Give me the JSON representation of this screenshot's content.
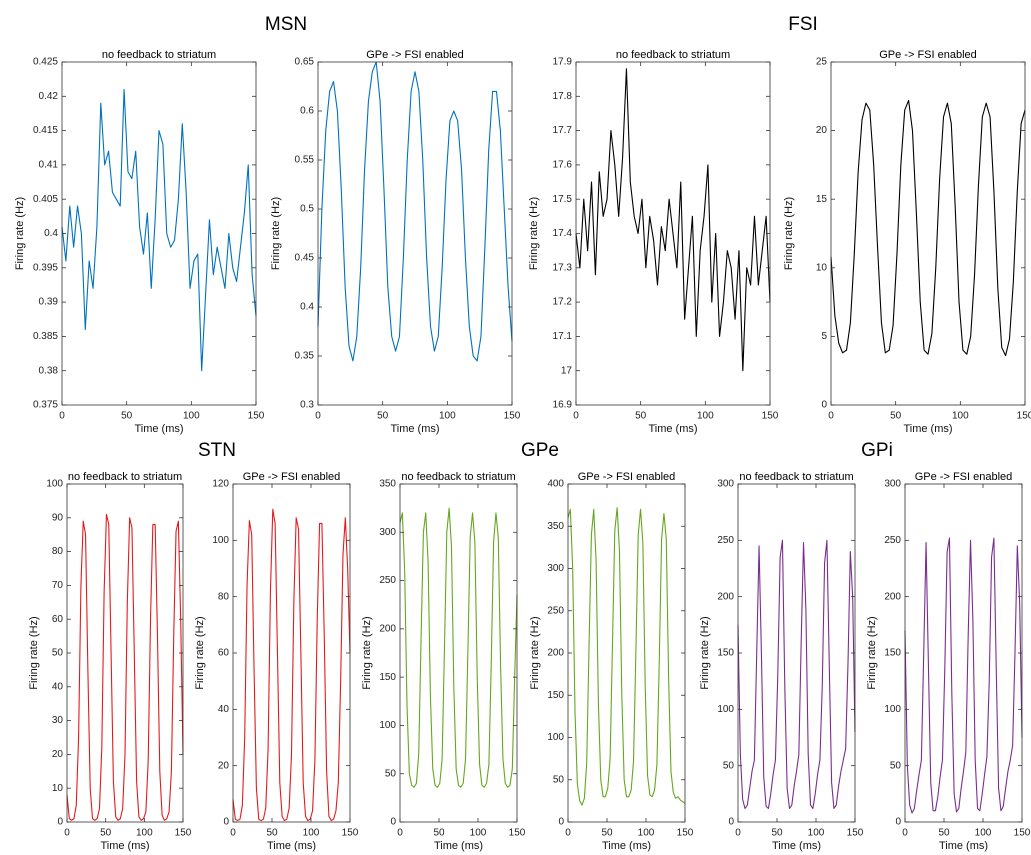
{
  "group_titles": [
    "MSN",
    "FSI",
    "STN",
    "GPe",
    "GPi"
  ],
  "chart_data": [
    {
      "type": "line",
      "title": "no feedback to striatum",
      "xlabel": "Time (ms)",
      "ylabel": "Firing rate (Hz)",
      "color": "#0072bd",
      "x": [
        0,
        3,
        6,
        9,
        12,
        15,
        18,
        21,
        24,
        27,
        30,
        33,
        36,
        39,
        42,
        45,
        48,
        51,
        54,
        57,
        60,
        63,
        66,
        69,
        72,
        75,
        78,
        81,
        84,
        87,
        90,
        93,
        96,
        99,
        102,
        105,
        108,
        111,
        114,
        117,
        120,
        123,
        126,
        129,
        132,
        135,
        138,
        141,
        144,
        147,
        150
      ],
      "values": [
        0.401,
        0.396,
        0.404,
        0.398,
        0.404,
        0.4,
        0.386,
        0.396,
        0.392,
        0.401,
        0.419,
        0.41,
        0.412,
        0.406,
        0.405,
        0.404,
        0.421,
        0.409,
        0.408,
        0.412,
        0.401,
        0.397,
        0.403,
        0.392,
        0.402,
        0.415,
        0.413,
        0.4,
        0.398,
        0.399,
        0.405,
        0.416,
        0.406,
        0.392,
        0.396,
        0.397,
        0.38,
        0.391,
        0.402,
        0.394,
        0.398,
        0.395,
        0.392,
        0.4,
        0.395,
        0.393,
        0.398,
        0.403,
        0.41,
        0.394,
        0.388
      ],
      "xlim": [
        0,
        150
      ],
      "xticks": [
        0,
        50,
        100,
        150
      ],
      "ylim": [
        0.375,
        0.425
      ],
      "yticks": [
        0.375,
        0.38,
        0.385,
        0.39,
        0.395,
        0.4,
        0.405,
        0.41,
        0.415,
        0.42,
        0.425
      ]
    },
    {
      "type": "line",
      "title": "GPe -> FSI enabled",
      "xlabel": "Time (ms)",
      "ylabel": "Firing rate (Hz)",
      "color": "#0072bd",
      "x": [
        0,
        3,
        6,
        9,
        12,
        15,
        18,
        21,
        24,
        27,
        30,
        33,
        36,
        39,
        42,
        45,
        48,
        51,
        54,
        57,
        60,
        63,
        66,
        69,
        72,
        75,
        78,
        81,
        84,
        87,
        90,
        93,
        96,
        99,
        102,
        105,
        108,
        111,
        114,
        117,
        120,
        123,
        126,
        129,
        132,
        135,
        138,
        141,
        144,
        147,
        150
      ],
      "values": [
        0.38,
        0.5,
        0.58,
        0.62,
        0.63,
        0.6,
        0.52,
        0.42,
        0.36,
        0.345,
        0.37,
        0.44,
        0.54,
        0.61,
        0.64,
        0.65,
        0.61,
        0.52,
        0.42,
        0.37,
        0.355,
        0.37,
        0.45,
        0.55,
        0.62,
        0.64,
        0.62,
        0.55,
        0.45,
        0.38,
        0.355,
        0.37,
        0.44,
        0.53,
        0.59,
        0.6,
        0.59,
        0.54,
        0.45,
        0.38,
        0.35,
        0.345,
        0.37,
        0.46,
        0.56,
        0.62,
        0.62,
        0.58,
        0.5,
        0.42,
        0.365
      ],
      "xlim": [
        0,
        150
      ],
      "xticks": [
        0,
        50,
        100,
        150
      ],
      "ylim": [
        0.3,
        0.65
      ],
      "yticks": [
        0.3,
        0.35,
        0.4,
        0.45,
        0.5,
        0.55,
        0.6,
        0.65
      ]
    },
    {
      "type": "line",
      "title": "no feedback to striatum",
      "xlabel": "Time (ms)",
      "ylabel": "Firing rate (Hz)",
      "color": "#000000",
      "x": [
        0,
        3,
        6,
        9,
        12,
        15,
        18,
        21,
        24,
        27,
        30,
        33,
        36,
        39,
        42,
        45,
        48,
        51,
        54,
        57,
        60,
        63,
        66,
        69,
        72,
        75,
        78,
        81,
        84,
        87,
        90,
        93,
        96,
        99,
        102,
        105,
        108,
        111,
        114,
        117,
        120,
        123,
        126,
        129,
        132,
        135,
        138,
        141,
        144,
        147,
        150
      ],
      "values": [
        17.4,
        17.3,
        17.5,
        17.35,
        17.55,
        17.28,
        17.58,
        17.45,
        17.5,
        17.7,
        17.6,
        17.45,
        17.62,
        17.88,
        17.55,
        17.45,
        17.4,
        17.5,
        17.3,
        17.45,
        17.38,
        17.25,
        17.42,
        17.35,
        17.5,
        17.4,
        17.3,
        17.55,
        17.15,
        17.3,
        17.45,
        17.1,
        17.35,
        17.45,
        17.6,
        17.2,
        17.4,
        17.1,
        17.2,
        17.35,
        17.3,
        17.15,
        17.35,
        17.0,
        17.3,
        17.25,
        17.45,
        17.25,
        17.35,
        17.45,
        17.2
      ],
      "xlim": [
        0,
        150
      ],
      "xticks": [
        0,
        50,
        100,
        150
      ],
      "ylim": [
        16.9,
        17.9
      ],
      "yticks": [
        16.9,
        17,
        17.1,
        17.2,
        17.3,
        17.4,
        17.5,
        17.6,
        17.7,
        17.8,
        17.9
      ]
    },
    {
      "type": "line",
      "title": "GPe -> FSI enabled",
      "xlabel": "Time (ms)",
      "ylabel": "Firing rate (Hz)",
      "color": "#000000",
      "x": [
        0,
        3,
        6,
        9,
        12,
        15,
        18,
        21,
        24,
        27,
        30,
        33,
        36,
        39,
        42,
        45,
        48,
        51,
        54,
        57,
        60,
        63,
        66,
        69,
        72,
        75,
        78,
        81,
        84,
        87,
        90,
        93,
        96,
        99,
        102,
        105,
        108,
        111,
        114,
        117,
        120,
        123,
        126,
        129,
        132,
        135,
        138,
        141,
        144,
        147,
        150
      ],
      "values": [
        10.8,
        6.5,
        4.5,
        3.8,
        4.0,
        6.0,
        11,
        17,
        20.8,
        22,
        21.5,
        17.5,
        11.5,
        6,
        3.8,
        4.0,
        5.8,
        11,
        17.5,
        21.5,
        22.2,
        20,
        14,
        7.5,
        4.0,
        3.7,
        5.2,
        10,
        16.5,
        21,
        22,
        20.5,
        14.5,
        7.5,
        4.0,
        3.7,
        5.0,
        9.5,
        16,
        21,
        22,
        21,
        15.5,
        8.5,
        4.2,
        3.6,
        4.8,
        9,
        15.5,
        20.5,
        21.5
      ],
      "xlim": [
        0,
        150
      ],
      "xticks": [
        0,
        50,
        100,
        150
      ],
      "ylim": [
        0,
        25
      ],
      "yticks": [
        0,
        5,
        10,
        15,
        20,
        25
      ]
    },
    {
      "type": "line",
      "title": "no feedback to striatum",
      "xlabel": "Time (ms)",
      "ylabel": "Firing rate (Hz)",
      "color": "#e41a1c",
      "x": [
        0,
        3,
        6,
        9,
        12,
        15,
        18,
        21,
        24,
        27,
        30,
        33,
        36,
        39,
        42,
        45,
        48,
        51,
        54,
        57,
        60,
        63,
        66,
        69,
        72,
        75,
        78,
        81,
        84,
        87,
        90,
        93,
        96,
        99,
        102,
        105,
        108,
        111,
        114,
        117,
        120,
        123,
        126,
        129,
        132,
        135,
        138,
        141,
        144,
        147,
        150
      ],
      "values": [
        8,
        1,
        0.5,
        1,
        5,
        25,
        70,
        89,
        85,
        45,
        10,
        1,
        0.5,
        1,
        4,
        22,
        68,
        91,
        88,
        50,
        12,
        1.5,
        0.5,
        1,
        4,
        20,
        65,
        90,
        87,
        50,
        12,
        1.5,
        0.5,
        1,
        3,
        18,
        60,
        88,
        88,
        55,
        15,
        2,
        0.5,
        1,
        3,
        15,
        55,
        86,
        89,
        60,
        20
      ],
      "xlim": [
        0,
        150
      ],
      "xticks": [
        0,
        50,
        100,
        150
      ],
      "ylim": [
        0,
        100
      ],
      "yticks": [
        0,
        10,
        20,
        30,
        40,
        50,
        60,
        70,
        80,
        90,
        100
      ]
    },
    {
      "type": "line",
      "title": "GPe -> FSI enabled",
      "xlabel": "Time (ms)",
      "ylabel": "Firing rate (Hz)",
      "color": "#e41a1c",
      "x": [
        0,
        3,
        6,
        9,
        12,
        15,
        18,
        21,
        24,
        27,
        30,
        33,
        36,
        39,
        42,
        45,
        48,
        51,
        54,
        57,
        60,
        63,
        66,
        69,
        72,
        75,
        78,
        81,
        84,
        87,
        90,
        93,
        96,
        99,
        102,
        105,
        108,
        111,
        114,
        117,
        120,
        123,
        126,
        129,
        132,
        135,
        138,
        141,
        144,
        147,
        150
      ],
      "values": [
        8,
        1,
        0.5,
        1,
        6,
        30,
        84,
        107,
        102,
        54,
        12,
        1,
        0.5,
        1,
        5,
        26,
        82,
        111,
        106,
        60,
        14,
        2,
        0.5,
        1,
        5,
        24,
        78,
        108,
        104,
        60,
        14,
        2,
        0.5,
        1,
        4,
        22,
        72,
        106,
        106,
        66,
        18,
        2,
        0.5,
        1,
        4,
        14,
        50,
        95,
        108,
        90,
        60
      ],
      "xlim": [
        0,
        150
      ],
      "xticks": [
        0,
        50,
        100,
        150
      ],
      "ylim": [
        0,
        120
      ],
      "yticks": [
        0,
        20,
        40,
        60,
        80,
        100,
        120
      ]
    },
    {
      "type": "line",
      "title": "no feedback to striatum",
      "xlabel": "Time (ms)",
      "ylabel": "Firing rate (Hz)",
      "color": "#66a61e",
      "x": [
        0,
        3,
        6,
        9,
        12,
        15,
        18,
        21,
        24,
        27,
        30,
        33,
        36,
        39,
        42,
        45,
        48,
        51,
        54,
        57,
        60,
        63,
        66,
        69,
        72,
        75,
        78,
        81,
        84,
        87,
        90,
        93,
        96,
        99,
        102,
        105,
        108,
        111,
        114,
        117,
        120,
        123,
        126,
        129,
        132,
        135,
        138,
        141,
        144,
        147,
        150
      ],
      "values": [
        310,
        320,
        260,
        120,
        50,
        38,
        36,
        40,
        70,
        190,
        300,
        320,
        270,
        130,
        55,
        38,
        36,
        40,
        65,
        180,
        300,
        325,
        285,
        140,
        55,
        38,
        36,
        40,
        65,
        175,
        295,
        320,
        290,
        150,
        60,
        38,
        36,
        40,
        60,
        165,
        290,
        320,
        295,
        160,
        65,
        40,
        36,
        38,
        55,
        150,
        235
      ],
      "xlim": [
        0,
        150
      ],
      "xticks": [
        0,
        50,
        100,
        150
      ],
      "ylim": [
        0,
        350
      ],
      "yticks": [
        0,
        50,
        100,
        150,
        200,
        250,
        300,
        350
      ]
    },
    {
      "type": "line",
      "title": "GPe -> FSI enabled",
      "xlabel": "Time (ms)",
      "ylabel": "Firing rate (Hz)",
      "color": "#66a61e",
      "x": [
        0,
        3,
        6,
        9,
        12,
        15,
        18,
        21,
        24,
        27,
        30,
        33,
        36,
        39,
        42,
        45,
        48,
        51,
        54,
        57,
        60,
        63,
        66,
        69,
        72,
        75,
        78,
        81,
        84,
        87,
        90,
        93,
        96,
        99,
        102,
        105,
        108,
        111,
        114,
        117,
        120,
        123,
        126,
        129,
        132,
        135,
        138,
        141,
        144,
        147,
        150
      ],
      "values": [
        360,
        370,
        300,
        130,
        45,
        25,
        20,
        28,
        70,
        210,
        340,
        370,
        310,
        140,
        50,
        30,
        30,
        40,
        75,
        210,
        345,
        372,
        320,
        150,
        50,
        30,
        30,
        38,
        72,
        200,
        340,
        370,
        330,
        160,
        55,
        32,
        30,
        38,
        68,
        190,
        335,
        365,
        335,
        170,
        60,
        35,
        28,
        30,
        26,
        24,
        22
      ],
      "xlim": [
        0,
        150
      ],
      "xticks": [
        0,
        50,
        100,
        150
      ],
      "ylim": [
        0,
        400
      ],
      "yticks": [
        0,
        50,
        100,
        150,
        200,
        250,
        300,
        350,
        400
      ]
    },
    {
      "type": "line",
      "title": "no feedback to striatum",
      "xlabel": "Time (ms)",
      "ylabel": "Firing rate (Hz)",
      "color": "#7b2d8e",
      "x": [
        0,
        3,
        6,
        9,
        12,
        15,
        18,
        21,
        24,
        27,
        30,
        33,
        36,
        39,
        42,
        45,
        48,
        51,
        54,
        57,
        60,
        63,
        66,
        69,
        72,
        75,
        78,
        81,
        84,
        87,
        90,
        93,
        96,
        99,
        102,
        105,
        108,
        111,
        114,
        117,
        120,
        123,
        126,
        129,
        132,
        135,
        138,
        141,
        144,
        147,
        150
      ],
      "values": [
        175,
        60,
        20,
        12,
        15,
        30,
        45,
        55,
        150,
        245,
        150,
        40,
        14,
        12,
        25,
        42,
        55,
        130,
        235,
        250,
        120,
        30,
        12,
        15,
        32,
        45,
        60,
        160,
        248,
        190,
        60,
        15,
        12,
        25,
        42,
        55,
        120,
        230,
        250,
        140,
        35,
        12,
        15,
        32,
        45,
        55,
        65,
        140,
        240,
        200,
        80
      ],
      "xlim": [
        0,
        150
      ],
      "xticks": [
        0,
        50,
        100,
        150
      ],
      "ylim": [
        0,
        300
      ],
      "yticks": [
        0,
        50,
        100,
        150,
        200,
        250,
        300
      ]
    },
    {
      "type": "line",
      "title": "GPe -> FSI enabled",
      "xlabel": "Time (ms)",
      "ylabel": "Firing rate (Hz)",
      "color": "#7b2d8e",
      "x": [
        0,
        3,
        6,
        9,
        12,
        15,
        18,
        21,
        24,
        27,
        30,
        33,
        36,
        39,
        42,
        45,
        48,
        51,
        54,
        57,
        60,
        63,
        66,
        69,
        72,
        75,
        78,
        81,
        84,
        87,
        90,
        93,
        96,
        99,
        102,
        105,
        108,
        111,
        114,
        117,
        120,
        123,
        126,
        129,
        132,
        135,
        138,
        141,
        144,
        147,
        150
      ],
      "values": [
        170,
        50,
        15,
        8,
        12,
        28,
        42,
        55,
        150,
        248,
        140,
        35,
        10,
        10,
        22,
        40,
        55,
        135,
        240,
        252,
        115,
        25,
        9,
        12,
        30,
        45,
        62,
        165,
        250,
        180,
        55,
        12,
        10,
        25,
        42,
        58,
        125,
        235,
        252,
        135,
        30,
        10,
        14,
        30,
        45,
        55,
        68,
        150,
        245,
        195,
        75
      ],
      "xlim": [
        0,
        150
      ],
      "xticks": [
        0,
        50,
        100,
        150
      ],
      "ylim": [
        0,
        300
      ],
      "yticks": [
        0,
        50,
        100,
        150,
        200,
        250,
        300
      ]
    }
  ]
}
